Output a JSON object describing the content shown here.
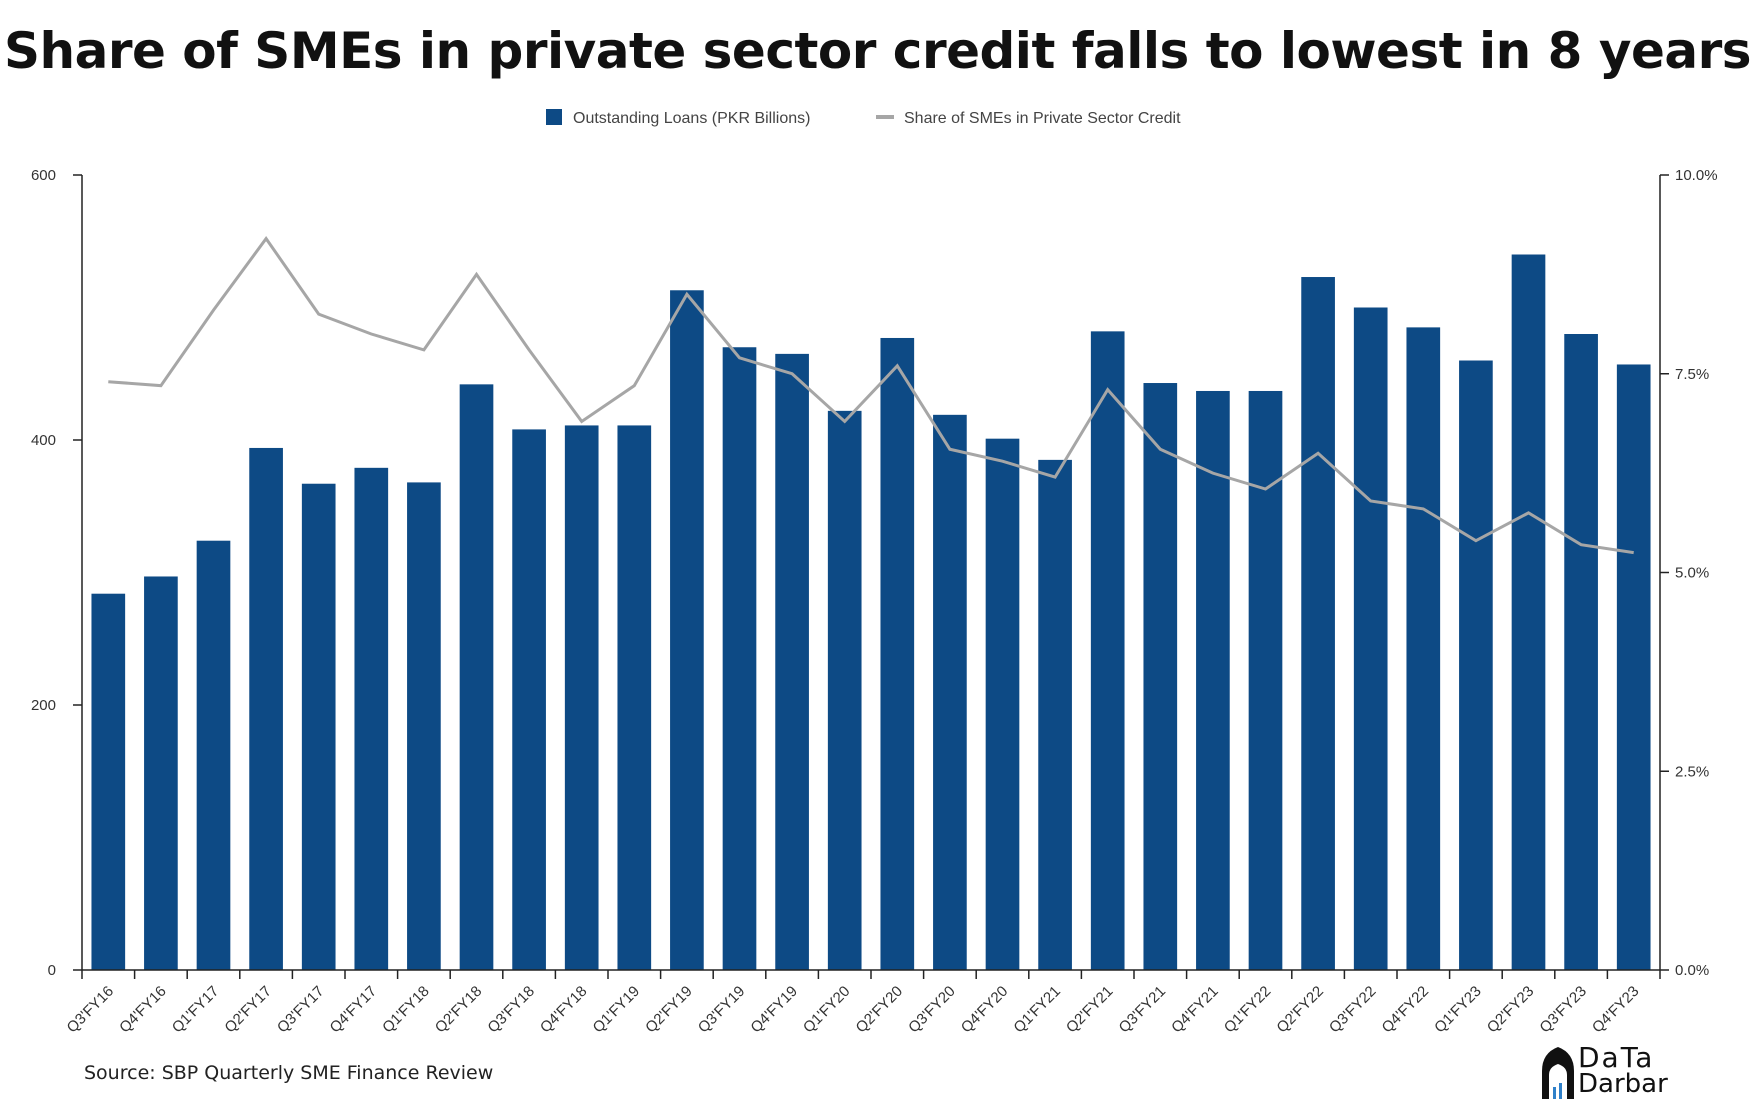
{
  "title": "Share of SMEs in private sector credit falls to lowest in 8 years",
  "source": "Source: SBP Quarterly SME Finance Review",
  "logo": {
    "line1": "DaTa",
    "line2": "Darbar",
    "icon": "building-dome-icon"
  },
  "colors": {
    "bar": "#0d4a85",
    "line": "#a6a6a6",
    "axis": "#222222"
  },
  "chart_data": {
    "type": "bar",
    "categories": [
      "Q3'FY16",
      "Q4'FY16",
      "Q1'FY17",
      "Q2'FY17",
      "Q3'FY17",
      "Q4'FY17",
      "Q1'FY18",
      "Q2'FY18",
      "Q3'FY18",
      "Q4'FY18",
      "Q1'FY19",
      "Q2'FY19",
      "Q3'FY19",
      "Q4'FY19",
      "Q1'FY20",
      "Q2'FY20",
      "Q3'FY20",
      "Q4'FY20",
      "Q1'FY21",
      "Q2'FY21",
      "Q3'FY21",
      "Q4'FY21",
      "Q1'FY22",
      "Q2'FY22",
      "Q3'FY22",
      "Q4'FY22",
      "Q1'FY23",
      "Q2'FY23",
      "Q3'FY23",
      "Q4'FY23"
    ],
    "series": [
      {
        "name": "Outstanding Loans (PKR Billions)",
        "type": "bar",
        "axis": "left",
        "values": [
          284,
          297,
          324,
          394,
          367,
          379,
          368,
          442,
          408,
          411,
          411,
          513,
          470,
          465,
          422,
          477,
          419,
          401,
          385,
          482,
          443,
          437,
          437,
          523,
          500,
          485,
          460,
          540,
          480,
          457
        ]
      },
      {
        "name": "Share of SMEs in Private Sector Credit",
        "type": "line",
        "axis": "right",
        "values": [
          7.4,
          7.35,
          8.3,
          9.2,
          8.25,
          8.0,
          7.8,
          8.75,
          7.8,
          6.9,
          7.35,
          8.5,
          7.7,
          7.5,
          6.9,
          7.6,
          6.55,
          6.4,
          6.2,
          7.3,
          6.55,
          6.25,
          6.05,
          6.5,
          5.9,
          5.8,
          5.4,
          5.75,
          5.35,
          5.25
        ]
      }
    ],
    "y_left": {
      "ylim": [
        0,
        600
      ],
      "ticks": [
        "0",
        "200",
        "400",
        "600"
      ],
      "tick_values": [
        0,
        200,
        400,
        600
      ]
    },
    "y_right": {
      "ylim": [
        0,
        10
      ],
      "ticks": [
        "0.0%",
        "2.5%",
        "5.0%",
        "7.5%",
        "10.0%"
      ],
      "tick_values": [
        0,
        2.5,
        5,
        7.5,
        10
      ]
    },
    "legend": "top-center",
    "grid": false
  }
}
